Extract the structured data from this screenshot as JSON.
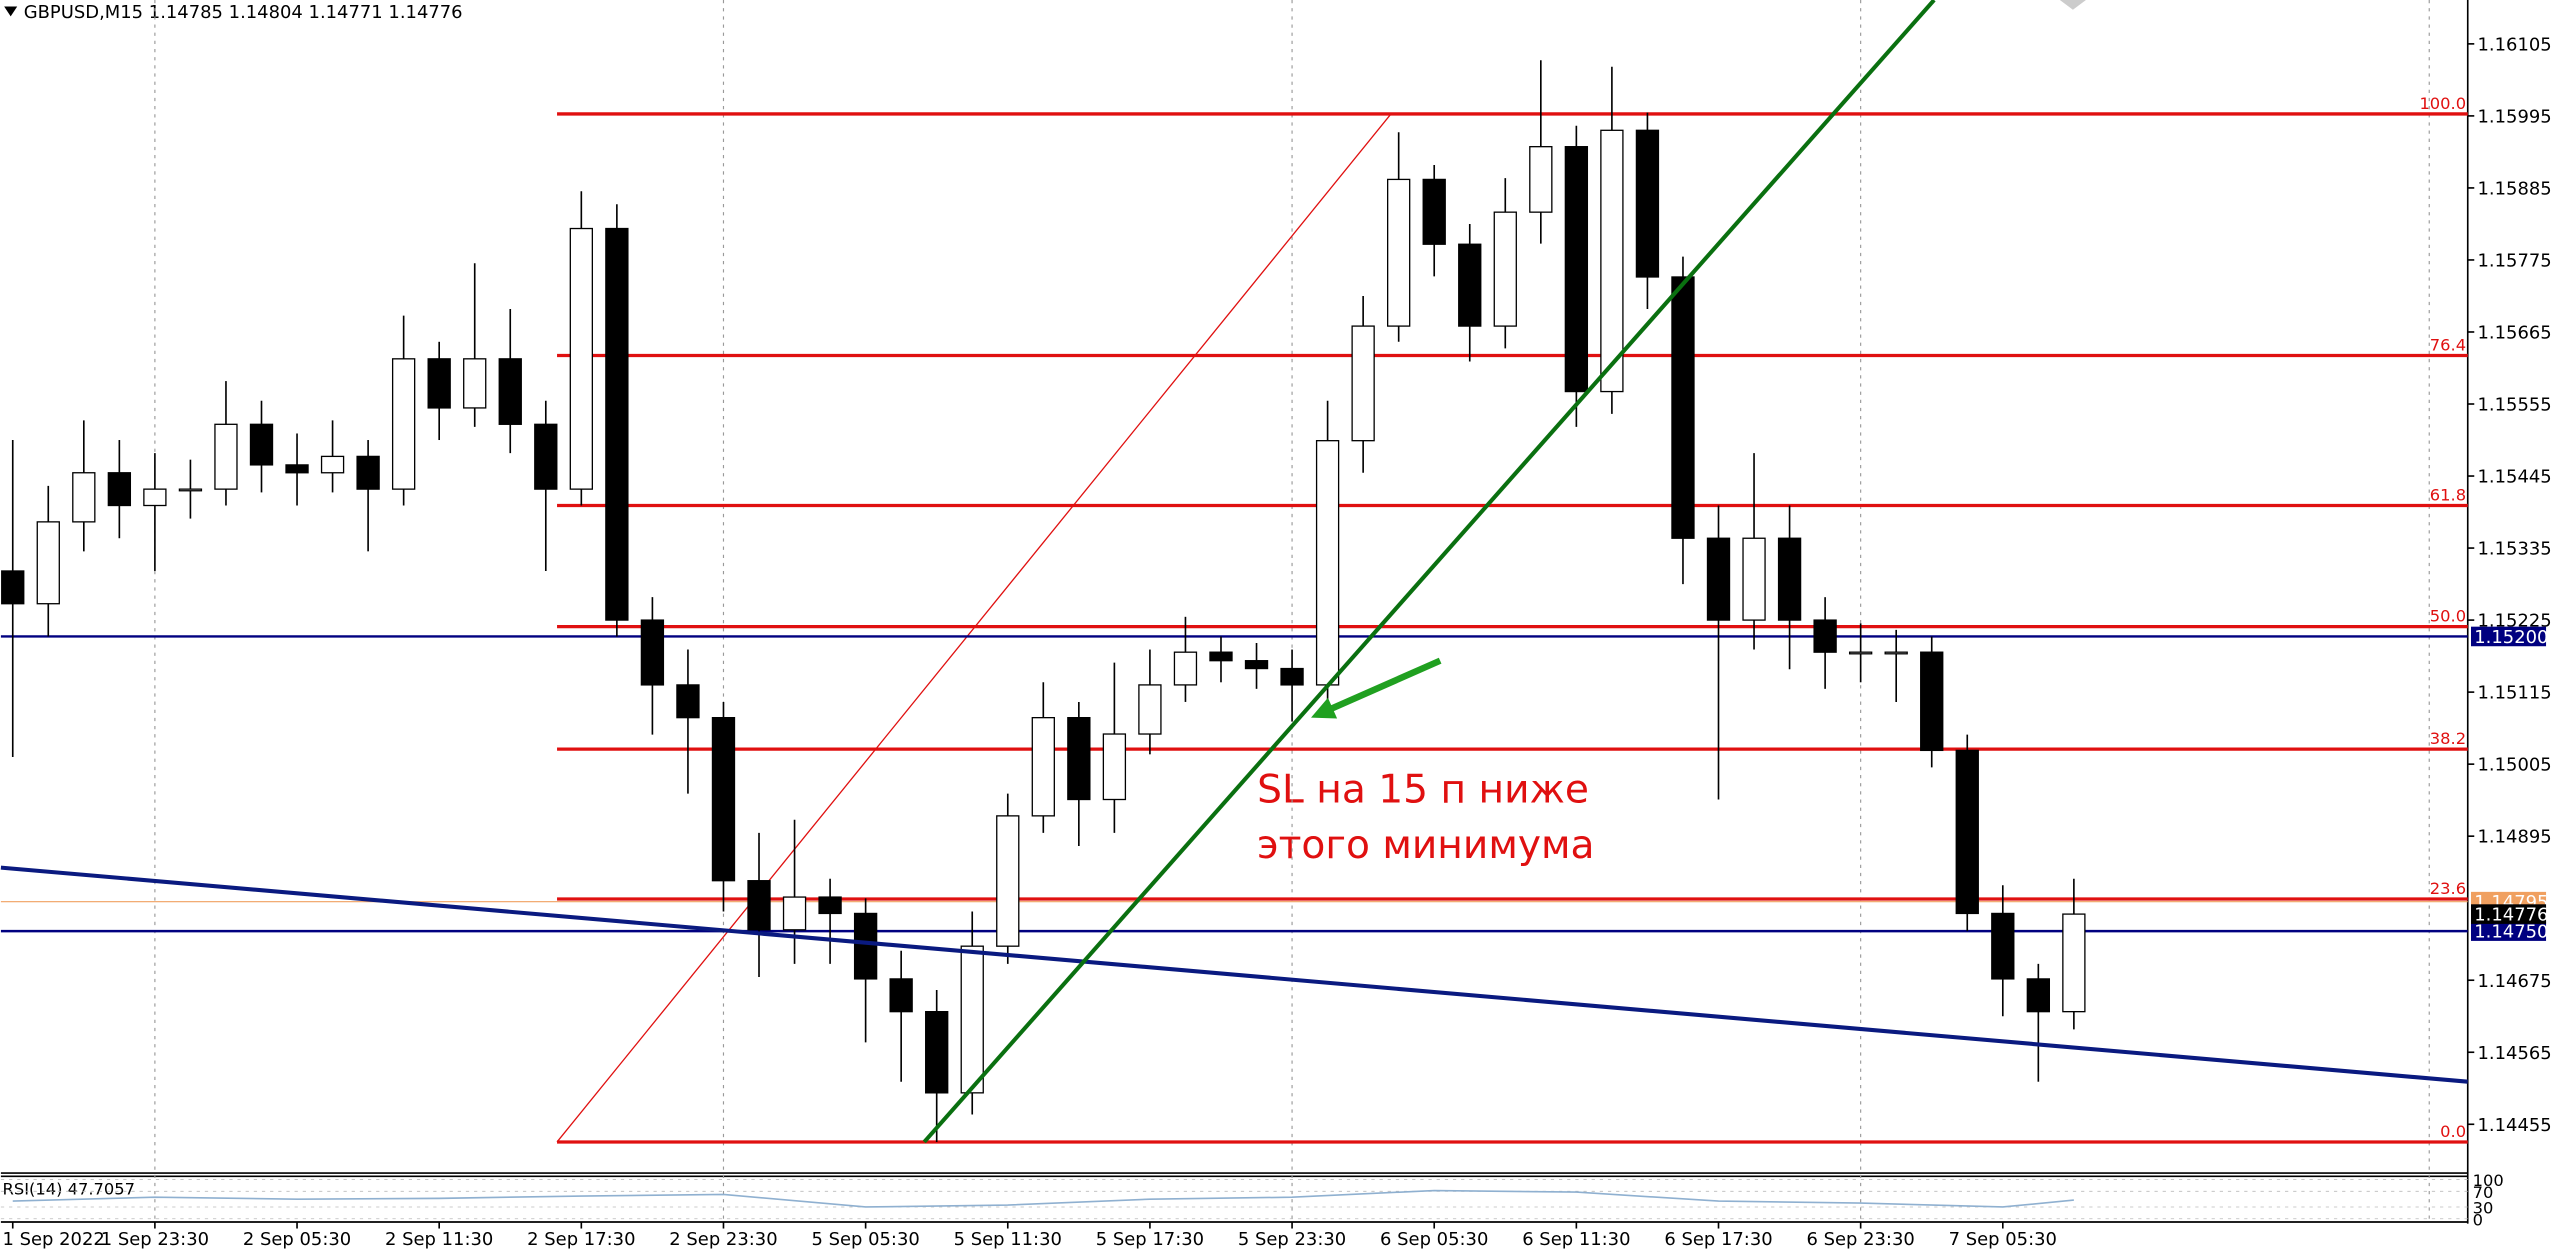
{
  "chart_data": {
    "type": "candlestick",
    "title": "GBPUSD,M15 1.14785 1.14804 1.14771 1.14776",
    "xlim": [
      -2,
      414.5
    ],
    "ylim": [
      1.14383,
      1.16172
    ],
    "yticks": [
      1.16105,
      1.15995,
      1.15885,
      1.15775,
      1.15665,
      1.15555,
      1.15445,
      1.15335,
      1.15225,
      1.15115,
      1.15005,
      1.14895,
      1.14675,
      1.14565,
      1.14455
    ],
    "xticks": [
      {
        "value": 0,
        "label": "1 Sep 2022"
      },
      {
        "value": 24,
        "label": "1 Sep 23:30"
      },
      {
        "value": 48,
        "label": "2 Sep 05:30"
      },
      {
        "value": 72,
        "label": "2 Sep 11:30"
      },
      {
        "value": 96,
        "label": "2 Sep 17:30"
      },
      {
        "value": 120,
        "label": "2 Sep 23:30"
      },
      {
        "value": 144,
        "label": "5 Sep 05:30"
      },
      {
        "value": 168,
        "label": "5 Sep 11:30"
      },
      {
        "value": 192,
        "label": "5 Sep 17:30"
      },
      {
        "value": 216,
        "label": "5 Sep 23:30"
      },
      {
        "value": 240,
        "label": "6 Sep 05:30"
      },
      {
        "value": 264,
        "label": "6 Sep 11:30"
      },
      {
        "value": 288,
        "label": "6 Sep 17:30"
      },
      {
        "value": 312,
        "label": "6 Sep 23:30"
      },
      {
        "value": 336,
        "label": "7 Sep 05:30"
      }
    ],
    "xgrid": [
      24,
      120,
      216,
      312,
      408
    ],
    "x": [
      0,
      6,
      12,
      18,
      24,
      30,
      36,
      42,
      48,
      54,
      60,
      66,
      72,
      78,
      84,
      90,
      96,
      102,
      108,
      114,
      120,
      126,
      132,
      138,
      144,
      150,
      156,
      162,
      168,
      174,
      180,
      186,
      192,
      198,
      204,
      210,
      216,
      222,
      228,
      234,
      240,
      246,
      252,
      258,
      264,
      270,
      276,
      282,
      288,
      294,
      300,
      306,
      312,
      318,
      324,
      330,
      336,
      342,
      348
    ],
    "open": [
      1.153,
      1.1525,
      1.15375,
      1.1545,
      1.154,
      1.15425,
      1.15425,
      1.15524,
      1.15462,
      1.1545,
      1.15475,
      1.15425,
      1.15624,
      1.15549,
      1.15624,
      1.15524,
      1.15425,
      1.15823,
      1.15225,
      1.15126,
      1.15076,
      1.14827,
      1.14752,
      1.14802,
      1.14777,
      1.14677,
      1.14627,
      1.14503,
      1.14727,
      1.14926,
      1.15076,
      1.14951,
      1.15051,
      1.15126,
      1.15176,
      1.15163,
      1.15151,
      1.15126,
      1.15499,
      1.15674,
      1.15898,
      1.15799,
      1.15674,
      1.15848,
      1.15948,
      1.15574,
      1.15973,
      1.15749,
      1.1535,
      1.15225,
      1.1535,
      1.15225,
      1.15176,
      1.15176,
      1.15176,
      1.15026,
      1.14777,
      1.14677,
      1.14627
    ],
    "high": [
      1.155,
      1.1543,
      1.1553,
      1.155,
      1.1548,
      1.1547,
      1.1559,
      1.1556,
      1.1551,
      1.1553,
      1.155,
      1.1569,
      1.1565,
      1.1577,
      1.157,
      1.1556,
      1.1588,
      1.1586,
      1.1526,
      1.1518,
      1.151,
      1.149,
      1.1492,
      1.1483,
      1.148,
      1.1472,
      1.1466,
      1.1478,
      1.1496,
      1.1513,
      1.151,
      1.1516,
      1.1518,
      1.1523,
      1.152,
      1.1519,
      1.1518,
      1.1556,
      1.1572,
      1.1597,
      1.1592,
      1.1583,
      1.159,
      1.1608,
      1.1598,
      1.1607,
      1.16,
      1.1578,
      1.154,
      1.1548,
      1.154,
      1.1526,
      1.1522,
      1.1521,
      1.152,
      1.1505,
      1.1482,
      1.147,
      1.1483
    ],
    "low": [
      1.15016,
      1.152,
      1.1533,
      1.1535,
      1.153,
      1.1538,
      1.154,
      1.1542,
      1.154,
      1.1542,
      1.1533,
      1.154,
      1.155,
      1.1552,
      1.1548,
      1.153,
      1.154,
      1.152,
      1.1505,
      1.1496,
      1.1478,
      1.1468,
      1.147,
      1.147,
      1.1458,
      1.1452,
      1.14428,
      1.1447,
      1.147,
      1.149,
      1.1488,
      1.149,
      1.1502,
      1.151,
      1.1513,
      1.1512,
      1.1507,
      1.151,
      1.1545,
      1.1565,
      1.1575,
      1.1562,
      1.1564,
      1.158,
      1.1552,
      1.1554,
      1.157,
      1.1528,
      1.14951,
      1.1518,
      1.1515,
      1.1512,
      1.1513,
      1.151,
      1.15,
      1.1475,
      1.1462,
      1.1452,
      1.146
    ],
    "close": [
      1.1525,
      1.15375,
      1.1545,
      1.154,
      1.15425,
      1.15425,
      1.15524,
      1.15462,
      1.1545,
      1.15475,
      1.15425,
      1.15624,
      1.15549,
      1.15624,
      1.15524,
      1.15425,
      1.15823,
      1.15225,
      1.15126,
      1.15076,
      1.14827,
      1.14752,
      1.14802,
      1.14777,
      1.14677,
      1.14627,
      1.14503,
      1.14727,
      1.14926,
      1.15076,
      1.14951,
      1.15051,
      1.15126,
      1.15176,
      1.15163,
      1.15151,
      1.15126,
      1.15499,
      1.15674,
      1.15898,
      1.15799,
      1.15674,
      1.15848,
      1.15948,
      1.15574,
      1.15973,
      1.15749,
      1.1535,
      1.15225,
      1.1535,
      1.15225,
      1.15176,
      1.15176,
      1.15176,
      1.15026,
      1.14777,
      1.14677,
      1.14627,
      1.14776
    ],
    "fib": {
      "color": "#e01010",
      "x": [
        91.9,
        232.7
      ],
      "y": [
        1.14428,
        1.15998
      ],
      "levels": [
        {
          "value": 1.15998,
          "label": "100.0"
        },
        {
          "value": 1.15629,
          "label": "76.4"
        },
        {
          "value": 1.154,
          "label": "61.8"
        },
        {
          "value": 1.15215,
          "label": "50.0"
        },
        {
          "value": 1.15028,
          "label": "38.2"
        },
        {
          "value": 1.14799,
          "label": "23.6"
        },
        {
          "value": 1.14428,
          "label": "0.0"
        }
      ]
    },
    "hlines": [
      {
        "value": 1.152,
        "label": "1.15200",
        "color": "#000080"
      },
      {
        "value": 1.1475,
        "label": "1.14750",
        "color": "#000080"
      }
    ],
    "ask": {
      "value": 1.14795,
      "label": "1.14795",
      "color": "#f0a060"
    },
    "bid": {
      "value": 1.14776,
      "color": "#000000"
    },
    "trendlines": [
      {
        "x": [
          -2,
          414.5
        ],
        "y": [
          1.14847,
          1.1452
        ],
        "color": "#0a1a80"
      },
      {
        "x": [
          153.9,
          324.4
        ],
        "y": [
          1.14428,
          1.16172
        ],
        "color": "#0a7010"
      }
    ],
    "arrow": {
      "x": [
        241.0,
        219.2
      ],
      "y": [
        1.15163,
        1.15076
      ],
      "color": "#20a020"
    },
    "annotation": [
      "SL на 15 п ниже",
      "этого минимума"
    ],
    "rsi": {
      "label": "RSI(14) 47.7057",
      "ylim": [
        0,
        100
      ],
      "yticks": [
        100,
        70,
        30,
        0
      ],
      "x": [
        0,
        24,
        48,
        72,
        96,
        120,
        144,
        168,
        192,
        216,
        240,
        264,
        288,
        312,
        336,
        348
      ],
      "values": [
        45,
        55,
        50,
        52,
        58,
        62,
        30,
        35,
        50,
        55,
        72,
        68,
        45,
        40,
        30,
        47.7057
      ]
    }
  }
}
